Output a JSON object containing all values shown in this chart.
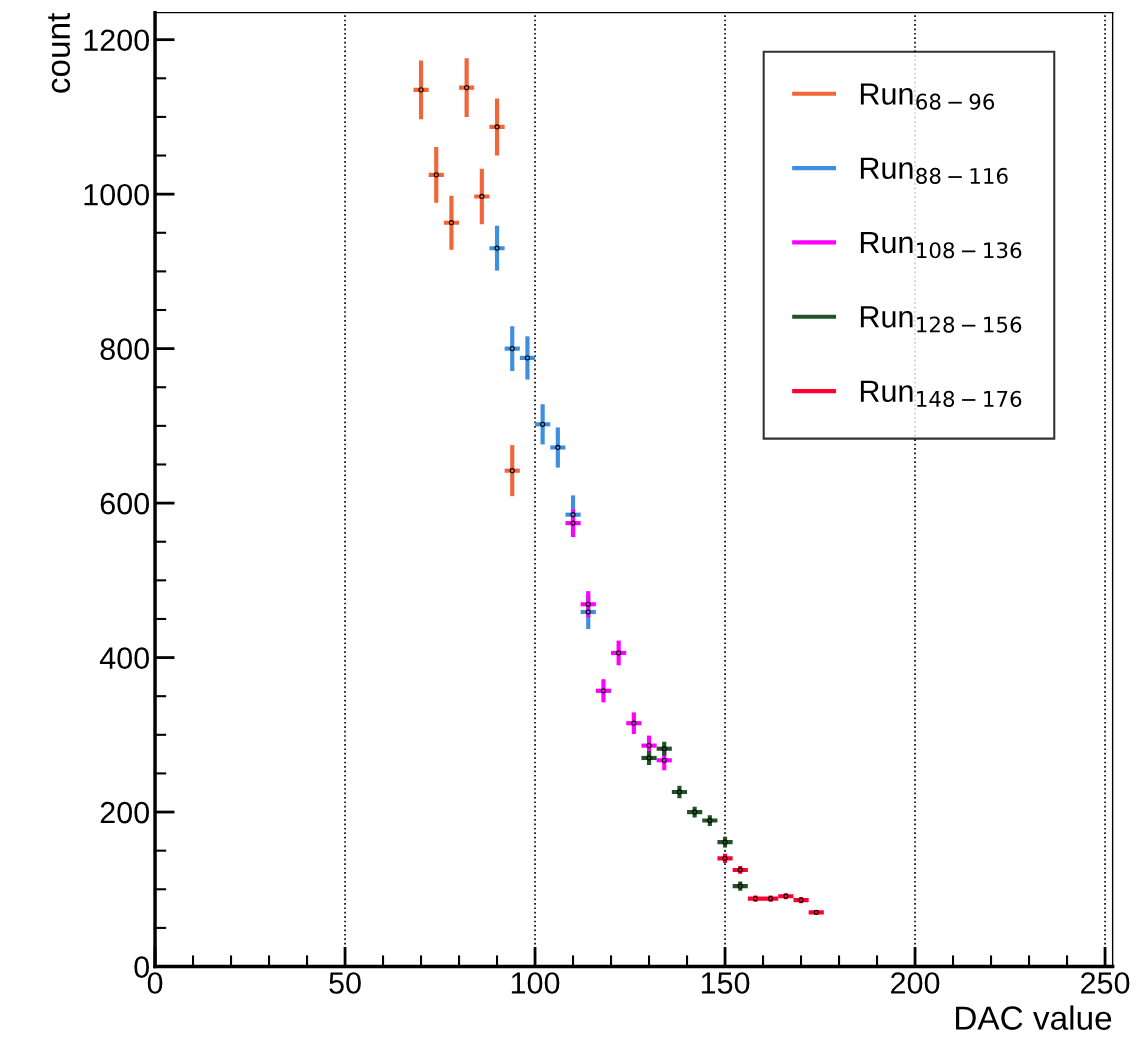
{
  "chart_data": {
    "type": "scatter",
    "xlabel": "DAC value",
    "ylabel": "count",
    "xlim": [
      0,
      252
    ],
    "xticks": [
      0,
      50,
      100,
      150,
      200,
      250
    ],
    "ylim": [
      0,
      1235
    ],
    "yticks": [
      0,
      200,
      400,
      600,
      800,
      1000,
      1200
    ],
    "grid": "x",
    "legend": "top right",
    "marker": "circle",
    "series": [
      {
        "name": "Run$_{68−96}$",
        "color": "#f0663a",
        "x": [
          70,
          74,
          78,
          82,
          86,
          90,
          94
        ],
        "values": [
          1135,
          1025,
          963,
          1138,
          997,
          1087,
          642
        ],
        "errors": [
          38,
          36,
          35,
          38,
          36,
          37,
          33
        ],
        "xerrors": [
          2,
          2,
          2,
          2,
          2,
          2,
          2
        ]
      },
      {
        "name": "Run$_{88−116}$",
        "color": "#3f8fe0",
        "x": [
          90,
          94,
          98,
          102,
          106,
          110,
          114
        ],
        "values": [
          930,
          800,
          788,
          702,
          672,
          585,
          459
        ],
        "errors": [
          29,
          29,
          28,
          26,
          26,
          25,
          22
        ],
        "xerrors": [
          2,
          2,
          2,
          2,
          2,
          2,
          2
        ]
      },
      {
        "name": "Run$_{108−136}$",
        "color": "#ff00ff",
        "x": [
          110,
          114,
          118,
          122,
          126,
          130,
          134
        ],
        "values": [
          574,
          469,
          357,
          406,
          315,
          286,
          267
        ],
        "errors": [
          18,
          17,
          15,
          16,
          14,
          13,
          13
        ],
        "xerrors": [
          2,
          2,
          2,
          2,
          2,
          2,
          2
        ]
      },
      {
        "name": "Run$_{128−156}$",
        "color": "#1f5526",
        "x": [
          130,
          134,
          138,
          142,
          146,
          150,
          154
        ],
        "values": [
          270,
          282,
          226,
          200,
          189,
          161,
          104
        ],
        "errors": [
          9,
          9,
          8,
          7,
          7,
          7,
          6
        ],
        "xerrors": [
          2,
          2,
          2,
          2,
          2,
          2,
          2
        ]
      },
      {
        "name": "Run$_{148−176}$",
        "color": "#ff0030",
        "x": [
          150,
          154,
          158,
          162,
          166,
          170,
          174
        ],
        "values": [
          140,
          125,
          88,
          88,
          91,
          86,
          70
        ],
        "errors": [
          6,
          5,
          4,
          4,
          4,
          4,
          3
        ],
        "xerrors": [
          2,
          2,
          2,
          2,
          2,
          2,
          2
        ]
      }
    ]
  }
}
